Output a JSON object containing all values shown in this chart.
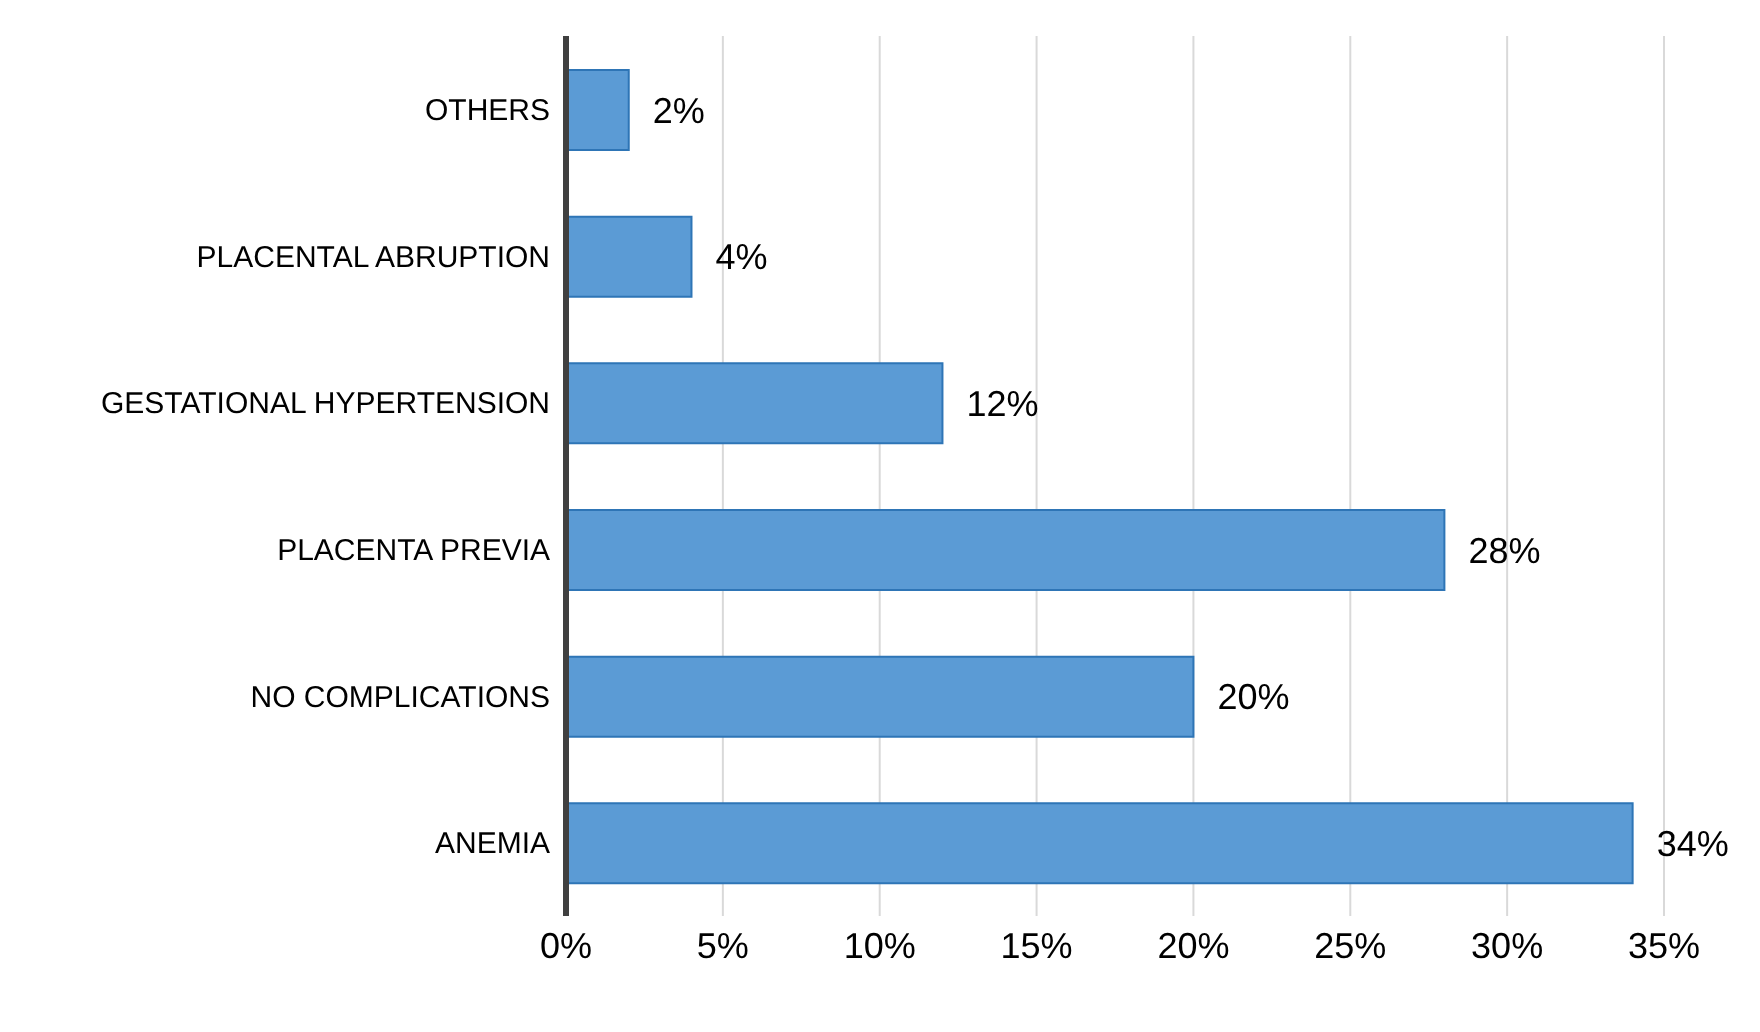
{
  "chart_data": {
    "type": "bar",
    "orientation": "horizontal",
    "categories": [
      "OTHERS",
      "PLACENTAL ABRUPTION",
      "GESTATIONAL HYPERTENSION",
      "PLACENTA PREVIA",
      "NO COMPLICATIONS",
      "ANEMIA"
    ],
    "values": [
      2,
      4,
      12,
      28,
      20,
      34
    ],
    "value_labels": [
      "2%",
      "4%",
      "12%",
      "28%",
      "20%",
      "34%"
    ],
    "color": "#5b9bd5",
    "xlim": [
      0,
      35
    ],
    "xticks": [
      {
        "value": 0,
        "label": "0%"
      },
      {
        "value": 5,
        "label": "5%"
      },
      {
        "value": 10,
        "label": "10%"
      },
      {
        "value": 15,
        "label": "15%"
      },
      {
        "value": 20,
        "label": "20%"
      },
      {
        "value": 25,
        "label": "25%"
      },
      {
        "value": 30,
        "label": "30%"
      },
      {
        "value": 35,
        "label": "35%"
      }
    ],
    "grid": "x"
  }
}
